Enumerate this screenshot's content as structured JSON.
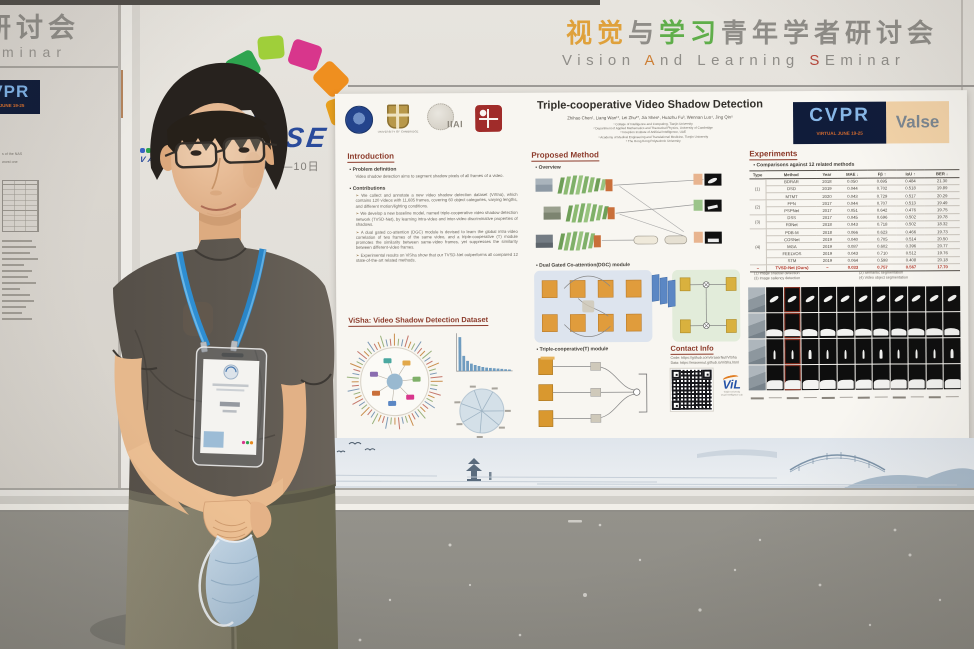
{
  "banner": {
    "cn_segments": [
      {
        "t": "视觉",
        "c": "#dfa13b"
      },
      {
        "t": "与",
        "c": "#8f8d88"
      },
      {
        "t": "学习",
        "c": "#5fae4a"
      },
      {
        "t": "青年学者研讨会",
        "c": "#8f8d88"
      }
    ],
    "en_segments": [
      {
        "t": "Vision ",
        "c": "#8f8d88"
      },
      {
        "t": "A",
        "c": "#cd7f35"
      },
      {
        "t": "nd Learning ",
        "c": "#8f8d88"
      },
      {
        "t": "S",
        "c": "#b5463a"
      },
      {
        "t": "Eminar",
        "c": "#8f8d88"
      }
    ],
    "left_panel_cn_partial": "研讨会",
    "left_panel_en_partial": "minar"
  },
  "valse_logo": {
    "wordmark": "VALSE",
    "date_partial": "年10月8—10日"
  },
  "left_poster": {
    "cvpr_partial_big": "CVPR",
    "cvpr_partial_sub": "VIRTUAL JUNE 19-25",
    "fragments": [
      "s of the NAS",
      "worst one"
    ]
  },
  "colors": {
    "heading_red": "#8c3b2b",
    "cvpr_navy": "#101c3a",
    "cvpr_letters": "#88b8e8",
    "valse_peach": "#f3d3a8",
    "lanyard_blue": "#2e8ed2",
    "ours_red": "#b03325"
  },
  "poster": {
    "title": "Triple-cooperative Video Shadow Detection",
    "authors": "Zhihao Chen¹, Liang Wan¹*, Lei Zhu²*, Jia Shen¹, Huazhu Fu³, Wennan Luo⁴, Jing Qin⁵",
    "affiliations": [
      "¹ College of Intelligence and Computing, Tianjin University",
      "² Department of Applied Mathematics and Theoretical Physics, University of Cambridge",
      "³ Inception Institute of Artificial Intelligence, UAE",
      "⁴ Academy of Medical Engineering and Translational Medicine, Tianjin University",
      "⁵ The Hong Kong Polytechnic University"
    ],
    "iiai_label": "IIAI",
    "cambridge_label": "UNIVERSITY OF CAMBRIDGE",
    "cvpr_badge": {
      "name": "CVPR",
      "sub": "VIRTUAL JUNE 19-25",
      "partner": "Valse"
    },
    "intro": {
      "heading": "Introduction",
      "problem_label": "Problem definition",
      "problem_text": "Video shadow detection aims to segment shadow pixels of all frames of a video.",
      "contrib_label": "Contributions",
      "contributions": [
        "We collect and annotate a new video shadow detection dataset (ViSha), which contains 120 videos with 11,685 frames, covering 60 object categories, varying lengths, and different motion/lighting conditions.",
        "We develop a new baseline model, named triple-cooperative video shadow detection network (TVSD-Net), by learning intra-video and inter-video discriminative properties of shadows.",
        "A dual gated co-attention (DGC) module is devised to learn the global intra-video correlation of two frames of the same video, and a triple-cooperative (T) module promotes the similarity between same-video frames, yet suppresses the similarity between different-video frames.",
        "Experimental results on ViSha show that our TVSD-Net outperforms all compared 12 state-of-the-art related methods."
      ]
    },
    "visha": {
      "heading": "ViSha: Video Shadow Detection Dataset",
      "bar_values": [
        1.0,
        0.45,
        0.3,
        0.22,
        0.18,
        0.15,
        0.12,
        0.1,
        0.09,
        0.08,
        0.07,
        0.06,
        0.05,
        0.04
      ],
      "pie_spoke_angles": [
        0,
        40,
        95,
        150,
        200,
        250,
        300
      ],
      "sunburst_chip_colors": [
        "#e2a84a",
        "#7fb069",
        "#d8368c",
        "#5b87c4",
        "#c96f3a",
        "#8a6db0",
        "#4aa8a0"
      ]
    },
    "method": {
      "heading": "Proposed Method",
      "bullets": [
        "Overview",
        "Dual Gated Co-attention(DGC) module",
        "Triple-cooperative(T) module"
      ]
    },
    "contact": {
      "heading": "Contact Info",
      "lines": [
        "Code: https://github.com/eraserNut/ViSha",
        "Data: https://erasernut.github.io/ViSha.html"
      ],
      "vil_name": "ViL",
      "vil_caption": [
        "Tianjin University",
        "Visual Intelligence Lab"
      ]
    },
    "experiments": {
      "heading": "Experiments",
      "bullet": "Comparisons against 12 related methods",
      "table": {
        "headers": [
          "Type",
          "Method",
          "Year",
          "MAE ↓",
          "Fβ ↑",
          "IoU ↑",
          "BER ↓"
        ],
        "groups": [
          {
            "type": "(1)",
            "rows": [
              [
                "BDRAR",
                "2018",
                "0.050",
                "0.695",
                "0.484",
                "21.30"
              ],
              [
                "DSD",
                "2019",
                "0.044",
                "0.702",
                "0.518",
                "19.89"
              ],
              [
                "MTMT",
                "2020",
                "0.043",
                "0.729",
                "0.517",
                "20.29"
              ]
            ]
          },
          {
            "type": "(2)",
            "rows": [
              [
                "FPN",
                "2017",
                "0.044",
                "0.707",
                "0.513",
                "19.49"
              ],
              [
                "PSPNet",
                "2017",
                "0.051",
                "0.642",
                "0.476",
                "19.75"
              ]
            ]
          },
          {
            "type": "(3)",
            "rows": [
              [
                "DSS",
                "2017",
                "0.045",
                "0.696",
                "0.502",
                "19.78"
              ],
              [
                "R3Net",
                "2018",
                "0.043",
                "0.718",
                "0.502",
                "18.32"
              ]
            ]
          },
          {
            "type": "(4)",
            "rows": [
              [
                "PDB-M",
                "2018",
                "0.066",
                "0.623",
                "0.466",
                "19.73"
              ],
              [
                "COSNet",
                "2019",
                "0.040",
                "0.705",
                "0.514",
                "20.50"
              ],
              [
                "MGA",
                "2019",
                "0.087",
                "0.602",
                "0.396",
                "20.77"
              ],
              [
                "FEELVOS",
                "2019",
                "0.043",
                "0.710",
                "0.512",
                "19.76"
              ],
              [
                "STM",
                "2019",
                "0.064",
                "0.598",
                "0.408",
                "20.18"
              ]
            ]
          },
          {
            "type": "–",
            "highlight": true,
            "rows": [
              [
                "TVSD-Net (Ours)",
                "–",
                "0.033",
                "0.757",
                "0.567",
                "17.70"
              ]
            ]
          }
        ]
      },
      "footnotes": [
        "(1) Image shadow detection",
        "(2) Semantic segmentation",
        "(3) Image saliency detection",
        "(4) Video object segmentation"
      ],
      "qualitative": {
        "columns": 12,
        "rows": 4,
        "highlighted_column": 2
      }
    }
  }
}
